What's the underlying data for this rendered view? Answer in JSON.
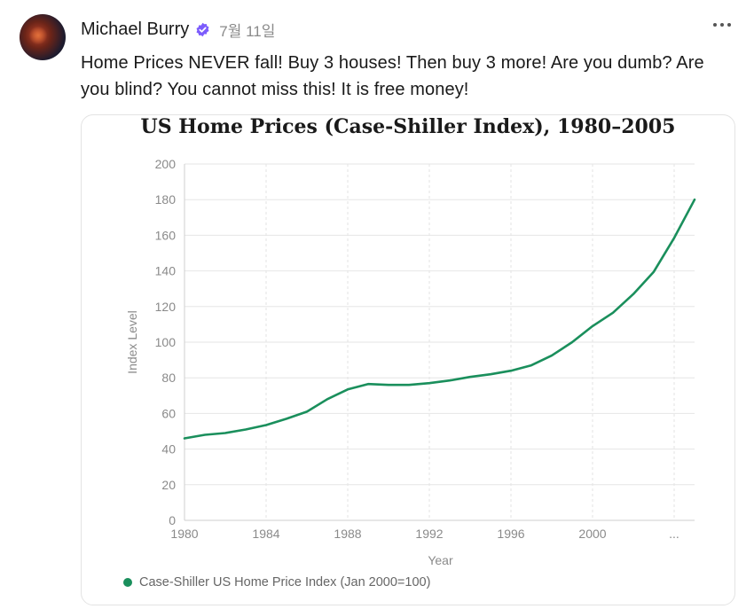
{
  "post": {
    "author": "Michael Burry",
    "date": "7월 11일",
    "text": "Home Prices NEVER fall! Buy 3 houses! Then buy 3 more! Are you dumb? Are you blind? You cannot miss this! It is free money!"
  },
  "icons": {
    "verified": "verified-badge-icon",
    "more": "more-horizontal-icon"
  },
  "colors": {
    "line": "#1a8f5c",
    "verified": "#7c5cfc"
  },
  "chart_data": {
    "type": "line",
    "title": "US Home Prices (Case-Shiller Index), 1980–2005",
    "xlabel": "Year",
    "ylabel": "Index Level",
    "ylim": [
      0,
      200
    ],
    "yticks": [
      0,
      20,
      40,
      60,
      80,
      100,
      120,
      140,
      160,
      180,
      200
    ],
    "xlim": [
      1980,
      2005
    ],
    "xticks": [
      {
        "value": 1980,
        "label": "1980"
      },
      {
        "value": 1984,
        "label": "1984"
      },
      {
        "value": 1988,
        "label": "1988"
      },
      {
        "value": 1992,
        "label": "1992"
      },
      {
        "value": 1996,
        "label": "1996"
      },
      {
        "value": 2000,
        "label": "2000"
      },
      {
        "value": 2004,
        "label": "..."
      }
    ],
    "grid": true,
    "legend_position": "bottom-left",
    "series": [
      {
        "name": "Case-Shiller US Home Price Index (Jan 2000=100)",
        "x": [
          1980,
          1981,
          1982,
          1983,
          1984,
          1985,
          1986,
          1987,
          1988,
          1989,
          1990,
          1991,
          1992,
          1993,
          1994,
          1995,
          1996,
          1997,
          1998,
          1999,
          2000,
          2001,
          2002,
          2003,
          2004,
          2005
        ],
        "y": [
          46,
          48,
          49,
          51,
          53.5,
          57,
          61,
          68,
          73.5,
          76.5,
          76,
          76,
          77,
          78.5,
          80.5,
          82,
          84,
          87,
          92.5,
          100,
          109,
          116.5,
          127,
          139.5,
          158.5,
          180
        ]
      }
    ]
  }
}
